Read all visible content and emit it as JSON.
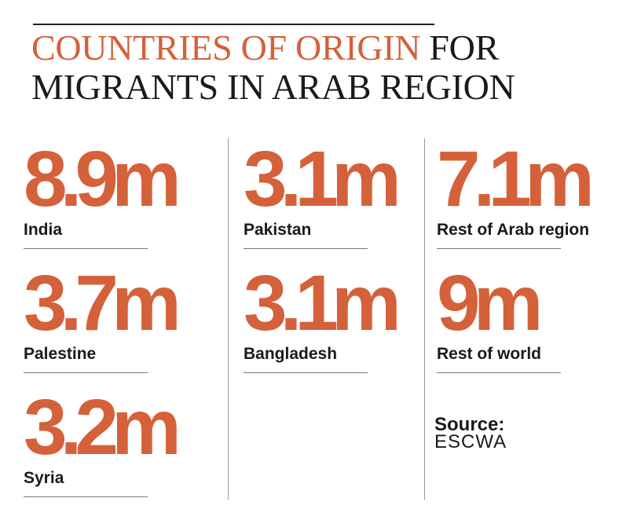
{
  "title": {
    "accent": "COUNTRIES OF ORIGIN",
    "rest_line1": " FOR",
    "line2": "MIGRANTS IN ARAB REGION"
  },
  "stats": [
    {
      "value": "8.9m",
      "label": "India"
    },
    {
      "value": "3.7m",
      "label": "Palestine"
    },
    {
      "value": "3.2m",
      "label": "Syria"
    },
    {
      "value": "3.1m",
      "label": "Pakistan"
    },
    {
      "value": "3.1m",
      "label": "Bangladesh"
    },
    {
      "value": "7.1m",
      "label": "Rest of Arab region"
    },
    {
      "value": "9m",
      "label": "Rest of world"
    }
  ],
  "source": {
    "label": "Source:",
    "value": "ESCWA"
  },
  "colors": {
    "accent": "#d4613a",
    "text": "#1a1a1a"
  }
}
